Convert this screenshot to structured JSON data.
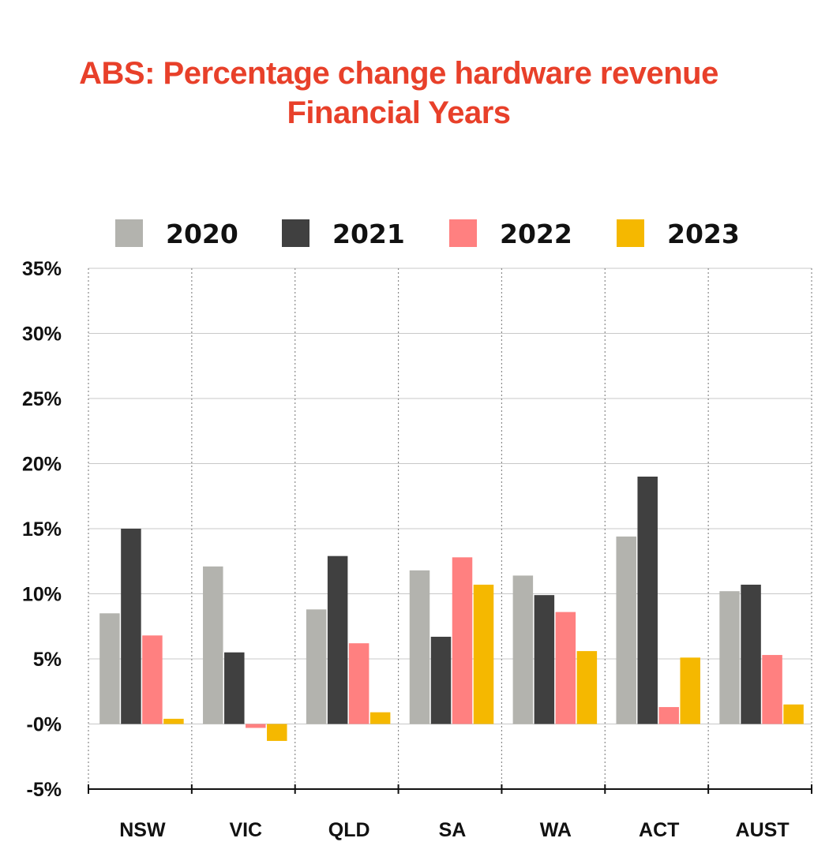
{
  "chart_data": {
    "type": "bar",
    "title": "ABS: Percentage change hardware revenue",
    "subtitle": "Financial Years",
    "xlabel": "",
    "ylabel": "",
    "categories": [
      "NSW",
      "VIC",
      "QLD",
      "SA",
      "WA",
      "ACT",
      "AUST"
    ],
    "series": [
      {
        "name": "2020",
        "color": "#b3b3ae",
        "values": [
          8.5,
          12.1,
          8.8,
          11.8,
          11.4,
          14.4,
          10.2
        ]
      },
      {
        "name": "2021",
        "color": "#404040",
        "values": [
          15.0,
          5.5,
          12.9,
          6.7,
          9.9,
          19.0,
          10.7
        ]
      },
      {
        "name": "2022",
        "color": "#ff8080",
        "values": [
          6.8,
          -0.3,
          6.2,
          12.8,
          8.6,
          1.3,
          5.3
        ]
      },
      {
        "name": "2023",
        "color": "#f5b800",
        "values": [
          0.4,
          -1.3,
          0.9,
          10.7,
          5.6,
          5.1,
          1.5
        ]
      }
    ],
    "ylim": [
      -5,
      35
    ],
    "yticks": [
      35,
      30,
      25,
      20,
      15,
      10,
      5,
      0,
      -5
    ],
    "ytick_labels": [
      "35%",
      "30%",
      "25%",
      "20%",
      "15%",
      "10%",
      "5%",
      "-0%",
      "-5%"
    ],
    "grid": true,
    "legend_position": "top"
  }
}
